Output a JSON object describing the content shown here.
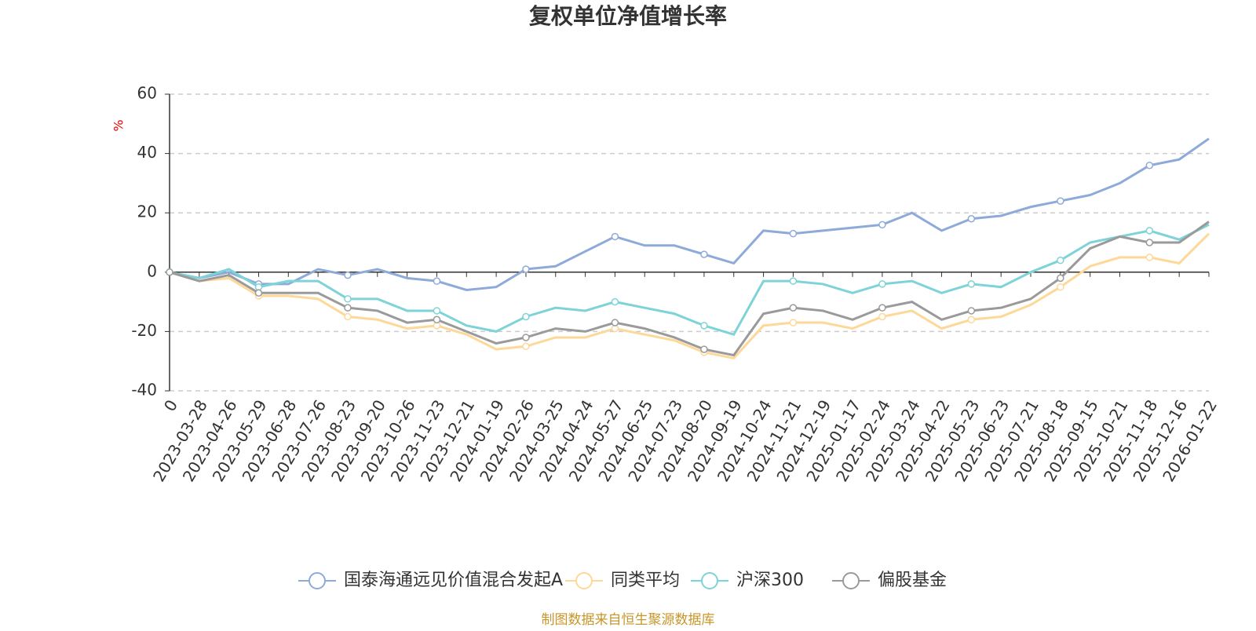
{
  "chart_data": {
    "type": "line",
    "title": "复权单位净值增长率",
    "y_label": "%",
    "note": "制图数据来自恒生聚源数据库",
    "categories": [
      "0",
      "2023-03-28",
      "2023-04-26",
      "2023-05-29",
      "2023-06-28",
      "2023-07-26",
      "2023-08-23",
      "2023-09-20",
      "2023-10-26",
      "2023-11-23",
      "2023-12-21",
      "2024-01-19",
      "2024-02-26",
      "2024-03-25",
      "2024-04-24",
      "2024-05-27",
      "2024-06-25",
      "2024-07-23",
      "2024-08-20",
      "2024-09-19",
      "2024-10-24",
      "2024-11-21",
      "2024-12-19",
      "2025-01-17",
      "2025-02-24",
      "2025-03-24",
      "2025-04-22",
      "2025-05-23",
      "2025-06-23",
      "2025-07-21",
      "2025-08-18",
      "2025-09-15",
      "2025-10-21",
      "2025-11-18",
      "2025-12-16",
      "2026-01-22"
    ],
    "series": [
      {
        "name": "国泰海通远见价值混合发起A",
        "color": "#8eaad9",
        "values": [
          0,
          -2,
          0,
          -4,
          -4,
          1,
          -1,
          1,
          -2,
          -3,
          -6,
          -5,
          1,
          2,
          7,
          12,
          9,
          9,
          6,
          3,
          14,
          13,
          14,
          15,
          16,
          20,
          14,
          18,
          19,
          22,
          24,
          26,
          30,
          36,
          38,
          45
        ]
      },
      {
        "name": "同类平均",
        "color": "#fdd899",
        "values": [
          0,
          -3,
          -2,
          -8,
          -8,
          -9,
          -15,
          -16,
          -19,
          -18,
          -21,
          -26,
          -25,
          -22,
          -22,
          -19,
          -21,
          -23,
          -27,
          -29,
          -18,
          -17,
          -17,
          -19,
          -15,
          -13,
          -19,
          -16,
          -15,
          -11,
          -5,
          2,
          5,
          5,
          3,
          13
        ]
      },
      {
        "name": "沪深300",
        "color": "#7dd3d8",
        "values": [
          0,
          -2,
          1,
          -5,
          -3,
          -3,
          -9,
          -9,
          -13,
          -13,
          -18,
          -20,
          -15,
          -12,
          -13,
          -10,
          -12,
          -14,
          -18,
          -21,
          -3,
          -3,
          -4,
          -7,
          -4,
          -3,
          -7,
          -4,
          -5,
          0,
          4,
          10,
          12,
          14,
          11,
          16
        ]
      },
      {
        "name": "偏股基金",
        "color": "#9a9a9a",
        "values": [
          0,
          -3,
          -1,
          -7,
          -7,
          -7,
          -12,
          -13,
          -17,
          -16,
          -20,
          -24,
          -22,
          -19,
          -20,
          -17,
          -19,
          -22,
          -26,
          -28,
          -14,
          -12,
          -13,
          -16,
          -12,
          -10,
          -16,
          -13,
          -12,
          -9,
          -2,
          8,
          12,
          10,
          10,
          17
        ]
      }
    ],
    "ylim": [
      -40,
      60
    ],
    "yticks": [
      -40,
      -20,
      0,
      20,
      40,
      60
    ],
    "grid": true
  }
}
